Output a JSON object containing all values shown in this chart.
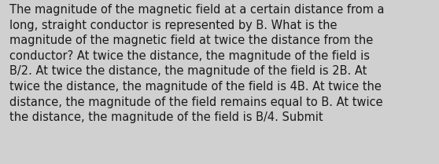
{
  "lines": [
    "The magnitude of the magnetic field at a certain distance from a",
    "long, straight conductor is represented by B. What is the",
    "magnitude of the magnetic field at twice the distance from the",
    "conductor? At twice the distance, the magnitude of the field is",
    "B/2. At twice the distance, the magnitude of the field is 2B. At",
    "twice the distance, the magnitude of the field is 4B. At twice the",
    "distance, the magnitude of the field remains equal to B. At twice",
    "the distance, the magnitude of the field is B/4. Submit"
  ],
  "background_color": "#d0d0d0",
  "text_color": "#1a1a1a",
  "font_size": 10.5,
  "font_family": "DejaVu Sans",
  "fig_width": 5.58,
  "fig_height": 2.09,
  "dpi": 100
}
